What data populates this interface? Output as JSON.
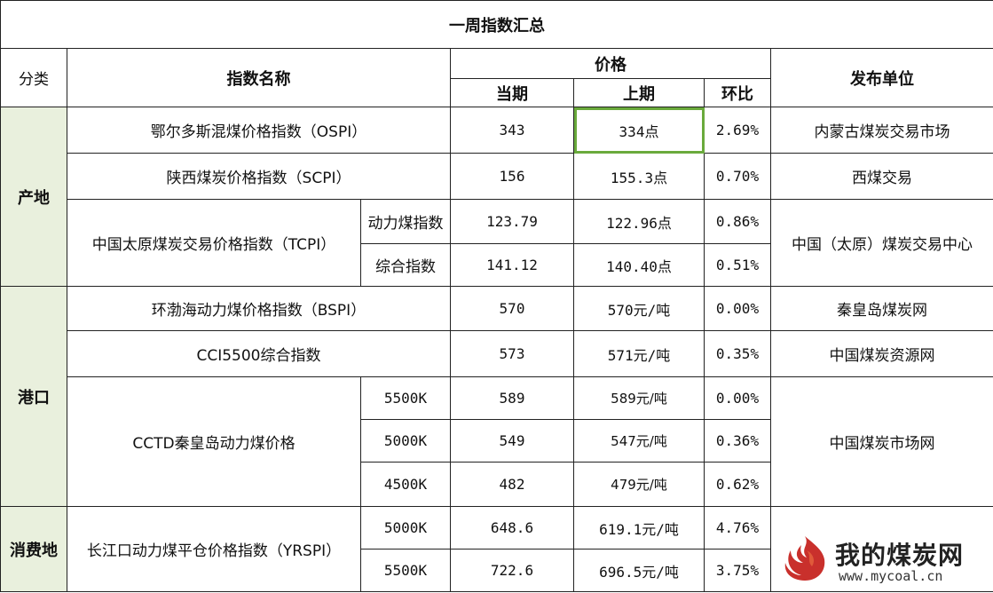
{
  "title": "一周指数汇总",
  "headers": {
    "category": "分类",
    "index_name": "指数名称",
    "price": "价格",
    "current": "当期",
    "previous": "上期",
    "change": "环比",
    "publisher": "发布单位"
  },
  "categories": {
    "origin": "产地",
    "port": "港口",
    "consumer": "消费地"
  },
  "rows": {
    "ospi": {
      "name": "鄂尔多斯混煤价格指数（OSPI）",
      "current": "343",
      "previous": "334点",
      "change": "2.69%",
      "publisher": "内蒙古煤炭交易市场"
    },
    "scpi": {
      "name": "陕西煤炭价格指数（SCPI）",
      "current": "156",
      "previous": "155.3点",
      "change": "0.70%",
      "publisher": "西煤交易"
    },
    "tcpi": {
      "name": "中国太原煤炭交易价格指数（TCPI）",
      "publisher": "中国（太原）煤炭交易中心",
      "subs": [
        {
          "label": "动力煤指数",
          "current": "123.79",
          "previous": "122.96点",
          "change": "0.86%"
        },
        {
          "label": "综合指数",
          "current": "141.12",
          "previous": "140.40点",
          "change": "0.51%"
        }
      ]
    },
    "bspi": {
      "name": "环渤海动力煤价格指数（BSPI）",
      "current": "570",
      "previous": "570元/吨",
      "change": "0.00%",
      "publisher": "秦皇岛煤炭网"
    },
    "cci": {
      "name": "CCI5500综合指数",
      "current": "573",
      "previous": "571元/吨",
      "change": "0.35%",
      "publisher": "中国煤炭资源网"
    },
    "cctd": {
      "name": "CCTD秦皇岛动力煤价格",
      "publisher": "中国煤炭市场网",
      "subs": [
        {
          "label": "5500K",
          "current": "589",
          "previous": "589元/吨",
          "change": "0.00%"
        },
        {
          "label": "5000K",
          "current": "549",
          "previous": "547元/吨",
          "change": "0.36%"
        },
        {
          "label": "4500K",
          "current": "482",
          "previous": "479元/吨",
          "change": "0.62%"
        }
      ]
    },
    "yrspi": {
      "name": "长江口动力煤平仓价格指数（YRSPI）",
      "publisher": "",
      "subs": [
        {
          "label": "5000K",
          "current": "648.6",
          "previous": "619.1元/吨",
          "change": "4.76%"
        },
        {
          "label": "5500K",
          "current": "722.6",
          "previous": "696.5元/吨",
          "change": "3.75%"
        }
      ]
    }
  },
  "watermark": {
    "brand": "我的煤炭网",
    "url": "www.mycoal.cn"
  },
  "colors": {
    "category_bg": "#e9f0dd",
    "selection_border": "#6aaa3c",
    "logo_red": "#c9302c"
  }
}
